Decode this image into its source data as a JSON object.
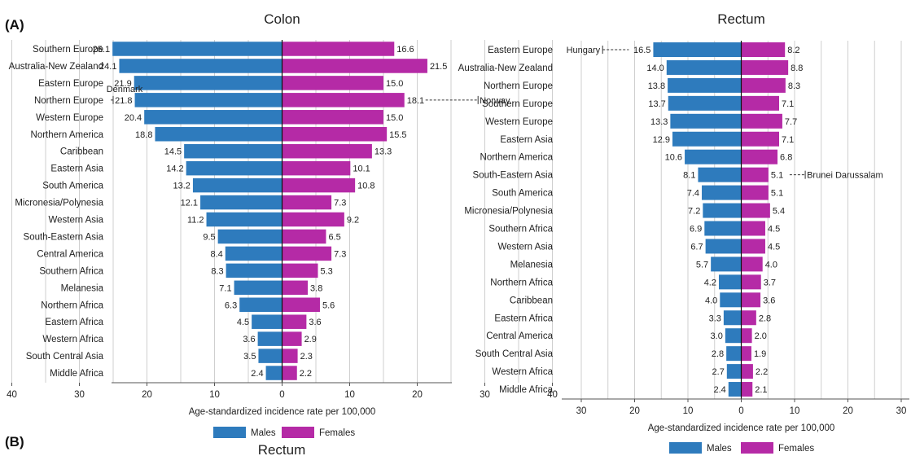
{
  "panel_labels": {
    "a": "(A)",
    "b": "(B)"
  },
  "legend": {
    "males": "Males",
    "females": "Females"
  },
  "colors": {
    "males": "#2e7bbd",
    "females": "#b52aa6",
    "grid": "#cfcfcf",
    "axis": "#555555"
  },
  "chart_data": [
    {
      "type": "bar",
      "orientation": "horizontal-diverging",
      "title": "Colon",
      "xlabel": "Age-standardized incidence rate per 100,000",
      "xlim": [
        -40,
        40
      ],
      "xticks": [
        -40,
        -30,
        -20,
        -10,
        0,
        10,
        20,
        30,
        40
      ],
      "xtick_labels": [
        "40",
        "30",
        "20",
        "10",
        "0",
        "10",
        "20",
        "30",
        "40"
      ],
      "grid": true,
      "legend_position": "bottom",
      "categories": [
        "Southern Europe",
        "Australia-New Zealand",
        "Eastern Europe",
        "Northern Europe",
        "Western Europe",
        "Northern America",
        "Caribbean",
        "Eastern Asia",
        "South America",
        "Micronesia/Polynesia",
        "Western Asia",
        "South-Eastern Asia",
        "Central America",
        "Southern Africa",
        "Melanesia",
        "Northern Africa",
        "Eastern Africa",
        "Western Africa",
        "South Central Asia",
        "Middle Africa"
      ],
      "series": [
        {
          "name": "Males",
          "values": [
            25.1,
            24.1,
            21.9,
            21.8,
            20.4,
            18.8,
            14.5,
            14.2,
            13.2,
            12.1,
            11.2,
            9.5,
            8.4,
            8.3,
            7.1,
            6.3,
            4.5,
            3.6,
            3.5,
            2.4
          ]
        },
        {
          "name": "Females",
          "values": [
            16.6,
            21.5,
            15.0,
            18.1,
            15.0,
            15.5,
            13.3,
            10.1,
            10.8,
            7.3,
            9.2,
            6.5,
            7.3,
            5.3,
            3.8,
            5.6,
            3.6,
            2.9,
            2.3,
            2.2
          ]
        }
      ],
      "value_labels": {
        "males": [
          "25.1",
          "24.1",
          "21.9",
          "21.8",
          "20.4",
          "18.8",
          "14.5",
          "14.2",
          "13.2",
          "12.1",
          "11.2",
          "9.5",
          "8.4",
          "8.3",
          "7.1",
          "6.3",
          "4.5",
          "3.6",
          "3.5",
          "2.4"
        ],
        "females": [
          "16.6",
          "21.5",
          "15.0",
          "18.1",
          "15.0",
          "15.5",
          "13.3",
          "10.1",
          "10.8",
          "7.3",
          "9.2",
          "6.5",
          "7.3",
          "5.3",
          "3.8",
          "5.6",
          "3.6",
          "2.9",
          "2.3",
          "2.2"
        ]
      },
      "annotations": [
        {
          "text": "Denmark",
          "category_index": 3,
          "side": "males",
          "value": 25.0
        },
        {
          "text": "Norway",
          "category_index": 3,
          "side": "females",
          "value": 29.0
        }
      ]
    },
    {
      "type": "bar",
      "orientation": "horizontal-diverging",
      "title": "Rectum",
      "xlabel": "Age-standardized incidence rate per 100,000",
      "xlim": [
        -30,
        30
      ],
      "xticks": [
        -30,
        -20,
        -10,
        0,
        10,
        20,
        30
      ],
      "xtick_labels": [
        "30",
        "20",
        "10",
        "0",
        "10",
        "20",
        "30"
      ],
      "grid": true,
      "legend_position": "bottom",
      "categories": [
        "Eastern Europe",
        "Australia-New Zealand",
        "Northern Europe",
        "Southern Europe",
        "Western Europe",
        "Eastern Asia",
        "Northern America",
        "South-Eastern Asia",
        "South America",
        "Micronesia/Polynesia",
        "Southern Africa",
        "Western Asia",
        "Melanesia",
        "Northern Africa",
        "Caribbean",
        "Eastern Africa",
        "Central America",
        "South Central Asia",
        "Western Africa",
        "Middle Africa"
      ],
      "series": [
        {
          "name": "Males",
          "values": [
            16.5,
            14.0,
            13.8,
            13.7,
            13.3,
            12.9,
            10.6,
            8.1,
            7.4,
            7.2,
            6.9,
            6.7,
            5.7,
            4.2,
            4.0,
            3.3,
            3.0,
            2.8,
            2.7,
            2.4
          ]
        },
        {
          "name": "Females",
          "values": [
            8.2,
            8.8,
            8.3,
            7.1,
            7.7,
            7.1,
            6.8,
            5.1,
            5.1,
            5.4,
            4.5,
            4.5,
            4.0,
            3.7,
            3.6,
            2.8,
            2.0,
            1.9,
            2.2,
            2.1
          ]
        }
      ],
      "value_labels": {
        "males": [
          "16.5",
          "14.0",
          "13.8",
          "13.7",
          "13.3",
          "12.9",
          "10.6",
          "8.1",
          "7.4",
          "7.2",
          "6.9",
          "6.7",
          "5.7",
          "4.2",
          "4.0",
          "3.3",
          "3.0",
          "2.8",
          "2.7",
          "2.4"
        ],
        "females": [
          "8.2",
          "8.8",
          "8.3",
          "7.1",
          "7.7",
          "7.1",
          "6.8",
          "5.1",
          "5.1",
          "5.4",
          "4.5",
          "4.5",
          "4.0",
          "3.7",
          "3.6",
          "2.8",
          "2.0",
          "1.9",
          "2.2",
          "2.1"
        ]
      },
      "annotations": [
        {
          "text": "Hungary",
          "category_index": 0,
          "side": "males",
          "value": 26.0
        },
        {
          "text": "Brunei Darussalam",
          "category_index": 7,
          "side": "females",
          "value": 12.0
        }
      ]
    }
  ],
  "partial_title_below": "Rectum"
}
